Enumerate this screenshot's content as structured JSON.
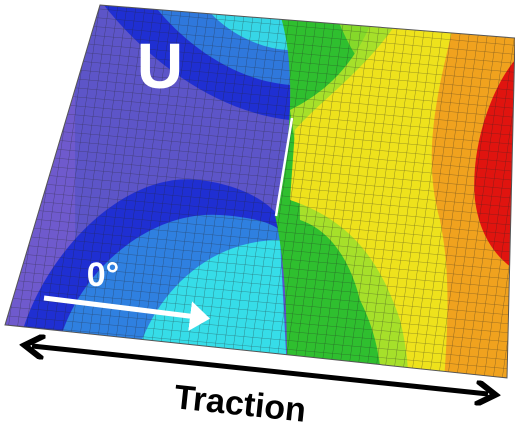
{
  "labels": {
    "field": "U",
    "angle": "0°",
    "load": "Traction"
  }
}
